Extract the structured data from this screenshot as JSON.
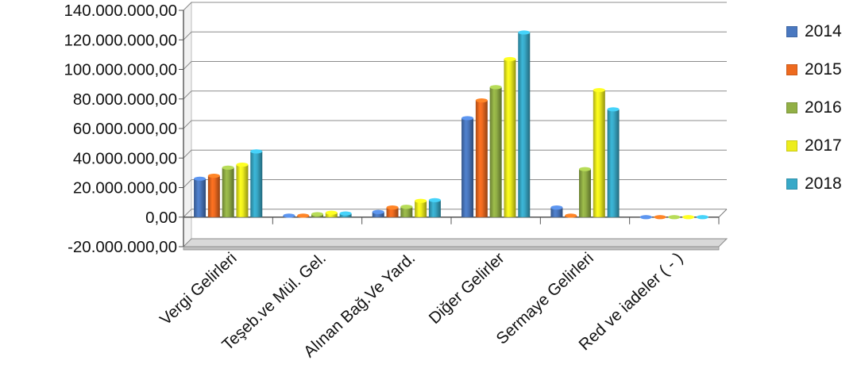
{
  "chart_data": {
    "type": "bar",
    "categories": [
      "Vergi Gelirleri",
      "Teşeb.ve Mül. Gel.",
      "Alınan Bağ.Ve Yard.",
      "Diğer Gelirler",
      "Sermaye Gelirleri",
      "Red ve iadeler  ( - )"
    ],
    "series": [
      {
        "name": "2014",
        "color": "#4a78c0",
        "values": [
          26000000,
          1000000,
          3500000,
          67000000,
          6500000,
          0
        ]
      },
      {
        "name": "2015",
        "color": "#ee6a1f",
        "values": [
          28000000,
          1000000,
          6500000,
          79000000,
          1000000,
          0
        ]
      },
      {
        "name": "2016",
        "color": "#92b046",
        "values": [
          33500000,
          2000000,
          7000000,
          88000000,
          32500000,
          0
        ]
      },
      {
        "name": "2017",
        "color": "#eded1c",
        "values": [
          35500000,
          3000000,
          11000000,
          107000000,
          86000000,
          0
        ]
      },
      {
        "name": "2018",
        "color": "#38a9c8",
        "values": [
          44500000,
          2500000,
          11500000,
          125000000,
          73000000,
          0
        ]
      }
    ],
    "yticks": [
      "140.000.000,00",
      "120.000.000,00",
      "100.000.000,00",
      "80.000.000,00",
      "60.000.000,00",
      "40.000.000,00",
      "20.000.000,00",
      "0,00",
      "-20.000.000,00"
    ],
    "ylim": [
      -20000000,
      140000000
    ],
    "grid": true,
    "legend_position": "right",
    "title": "",
    "xlabel": "",
    "ylabel": ""
  }
}
